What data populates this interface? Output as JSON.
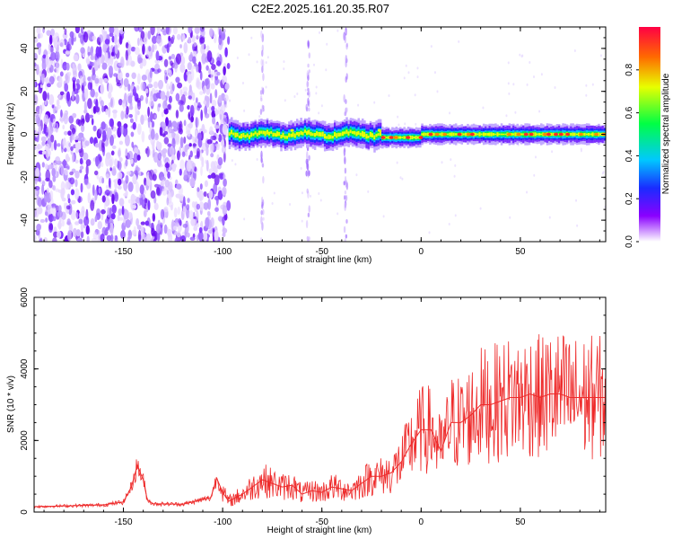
{
  "title": "C2E2.2025.161.20.35.R07",
  "chart_data": [
    {
      "type": "heatmap",
      "xlabel": "Height of straight line (km)",
      "ylabel": "Frequency (Hz)",
      "xlim": [
        -195,
        93
      ],
      "ylim": [
        -50,
        50
      ],
      "xticks": [
        -150,
        -100,
        -50,
        0,
        50
      ],
      "yticks": [
        -40,
        -20,
        0,
        20,
        40
      ],
      "colorbar": {
        "label": "Normalized spectral amplitude",
        "range": [
          0,
          1
        ],
        "ticks": [
          0.0,
          0.2,
          0.4,
          0.6,
          0.8
        ],
        "colormap": "rainbow"
      },
      "noise_region_x": [
        -195,
        -97
      ],
      "signal_band": {
        "x_start": -97,
        "x_end": 93,
        "center_freq": 0,
        "width_hz": [
          -6,
          6
        ]
      },
      "vertical_artifacts_x": [
        -80,
        -57,
        -38
      ]
    },
    {
      "type": "line",
      "xlabel": "Height of straight line (km)",
      "ylabel": "SNR (10 * v/v)",
      "xlim": [
        -195,
        93
      ],
      "ylim": [
        0,
        6000
      ],
      "xticks": [
        -150,
        -100,
        -50,
        0,
        50
      ],
      "yticks": [
        0,
        2000,
        4000,
        6000
      ],
      "line_color": "#ee2a2a",
      "series": [
        {
          "x": [
            -195,
            -180,
            -160,
            -150,
            -146,
            -143,
            -140,
            -138,
            -135,
            -120,
            -106,
            -103,
            -100,
            -97,
            -90,
            -85,
            -80,
            -75,
            -70,
            -65,
            -60,
            -55,
            -50,
            -45,
            -40,
            -35,
            -30,
            -25,
            -20,
            -15,
            -10,
            -5,
            0,
            5,
            10,
            15,
            20,
            25,
            30,
            35,
            40,
            45,
            50,
            55,
            60,
            65,
            70,
            75,
            80,
            85,
            93
          ],
          "y": [
            150,
            170,
            200,
            280,
            700,
            1300,
            900,
            350,
            230,
            220,
            400,
            950,
            550,
            300,
            500,
            700,
            900,
            800,
            700,
            750,
            500,
            600,
            550,
            700,
            650,
            600,
            800,
            1000,
            1000,
            1100,
            1400,
            1900,
            2300,
            2300,
            1700,
            2500,
            2500,
            2700,
            3000,
            3000,
            3100,
            3200,
            3200,
            3300,
            3200,
            3300,
            3300,
            3200,
            3200,
            3200,
            3200
          ]
        }
      ]
    }
  ]
}
